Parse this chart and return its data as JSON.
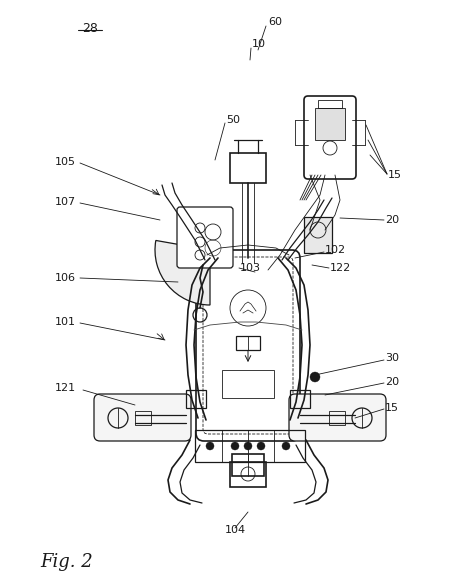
{
  "background_color": "#ffffff",
  "line_color": "#1a1a1a",
  "fig_width": 4.74,
  "fig_height": 5.86,
  "dpi": 100,
  "figure_label": "Fig. 2",
  "ref_number": "28"
}
